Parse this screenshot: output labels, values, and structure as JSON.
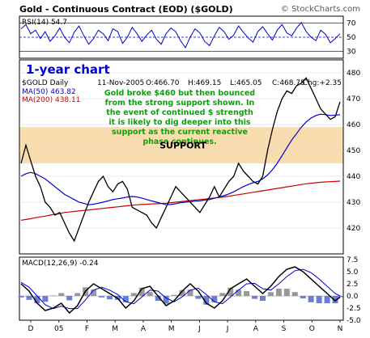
{
  "header": {
    "title": "Gold - Continuous Contract (EOD) ($GOLD)",
    "brand": "© StockCharts.com"
  },
  "chart_data": [
    {
      "type": "line",
      "panel": "rsi",
      "label": "RSI(14) 54.7",
      "ylim": [
        20,
        80
      ],
      "ticks": [
        30,
        50,
        70
      ],
      "reference_lines": [
        30,
        50,
        70
      ],
      "line_color": "#0000cc",
      "x": [
        0,
        6,
        12,
        18,
        24,
        30,
        36,
        42,
        48,
        54,
        60,
        66,
        72,
        78,
        84,
        90,
        96,
        102,
        108,
        114,
        120,
        126,
        132,
        138,
        144,
        150,
        156,
        162,
        168,
        174,
        180,
        186,
        192,
        198,
        204,
        210,
        216,
        222,
        228,
        234,
        240,
        246,
        252,
        258,
        264,
        270,
        276,
        282,
        288,
        294,
        300,
        306,
        312,
        318,
        324,
        330,
        336,
        342,
        348,
        354,
        360,
        366,
        372,
        378,
        384,
        390,
        396
      ],
      "values": [
        62,
        68,
        55,
        60,
        48,
        58,
        44,
        52,
        63,
        50,
        42,
        57,
        66,
        52,
        40,
        48,
        60,
        55,
        45,
        62,
        58,
        41,
        50,
        64,
        55,
        44,
        53,
        60,
        47,
        40,
        55,
        63,
        58,
        45,
        35,
        50,
        62,
        56,
        44,
        38,
        52,
        64,
        58,
        47,
        53,
        66,
        57,
        49,
        43,
        58,
        65,
        55,
        46,
        60,
        68,
        56,
        52,
        63,
        71,
        58,
        50,
        45,
        60,
        54,
        42,
        48,
        55
      ]
    },
    {
      "type": "line",
      "panel": "price",
      "title": "1-year chart",
      "info": {
        "symbol": "$GOLD Daily",
        "date": "11-Nov-2005",
        "open": "O:466.70",
        "high": "H:469.15",
        "low": "L:465.05",
        "close": "C:468.75",
        "change": "Chg:+2.35"
      },
      "legend": [
        {
          "name": "MA(50) 463.82",
          "color": "#0000cc"
        },
        {
          "name": "MA(200) 438.11",
          "color": "#cc0000"
        }
      ],
      "ylim": [
        410,
        485
      ],
      "ticks": [
        420,
        430,
        440,
        450,
        460,
        470,
        480
      ],
      "x_labels": [
        "D",
        "05",
        "F",
        "M",
        "A",
        "M",
        "J",
        "J",
        "A",
        "S",
        "O",
        "N"
      ],
      "support_zone": [
        445,
        459
      ],
      "support_label": "SUPPORT",
      "annotation": [
        "Gold broke $460 but then bounced",
        "from the strong support shown. In",
        "the event of continued $ strength",
        "it is likely to dig deeper into this",
        "support as the current reactive",
        "phase continues."
      ],
      "price_x": [
        0,
        6,
        12,
        18,
        24,
        30,
        36,
        42,
        48,
        54,
        60,
        66,
        72,
        78,
        84,
        90,
        96,
        102,
        108,
        114,
        120,
        126,
        132,
        138,
        144,
        150,
        156,
        162,
        168,
        174,
        180,
        186,
        192,
        198,
        204,
        210,
        216,
        222,
        228,
        234,
        240,
        246,
        252,
        258,
        264,
        270,
        276,
        282,
        288,
        294,
        300,
        306,
        312,
        318,
        324,
        330,
        336,
        342,
        348,
        354,
        360,
        366,
        372,
        378,
        384,
        390,
        396
      ],
      "price": [
        445,
        452,
        446,
        440,
        436,
        430,
        428,
        425,
        426,
        422,
        418,
        415,
        420,
        425,
        430,
        434,
        438,
        440,
        436,
        434,
        437,
        438,
        435,
        428,
        427,
        426,
        425,
        422,
        420,
        424,
        428,
        432,
        436,
        434,
        432,
        430,
        428,
        426,
        429,
        432,
        436,
        432,
        435,
        438,
        440,
        445,
        442,
        440,
        438,
        437,
        440,
        450,
        458,
        465,
        470,
        473,
        472,
        475,
        476,
        478,
        474,
        470,
        466,
        464,
        462,
        463,
        468.75
      ],
      "ma50": [
        440,
        441,
        441.5,
        441,
        440,
        439,
        437.5,
        436,
        434.5,
        433,
        432,
        431,
        430,
        429.5,
        429,
        429.2,
        429.6,
        430,
        430.5,
        431,
        431.3,
        431.6,
        432,
        432.2,
        432,
        431.6,
        431,
        430.5,
        430,
        429.5,
        429,
        429.1,
        429.4,
        429.8,
        430,
        430.2,
        430.4,
        430.5,
        430.8,
        431,
        431.5,
        432,
        432.5,
        433.2,
        434,
        435,
        436,
        436.8,
        437.5,
        438,
        439,
        440.5,
        442.5,
        445,
        448,
        451,
        454,
        456.5,
        459,
        461,
        462.5,
        463.5,
        464,
        463.8,
        463.5,
        463.6,
        463.82
      ],
      "ma200": [
        423,
        423.3,
        423.6,
        424,
        424.3,
        424.6,
        425,
        425.3,
        425.6,
        426,
        426.2,
        426.4,
        426.6,
        426.8,
        427,
        427.2,
        427.4,
        427.6,
        427.8,
        428,
        428.2,
        428.4,
        428.6,
        428.8,
        429,
        429.1,
        429.2,
        429.3,
        429.4,
        429.5,
        429.6,
        429.8,
        430,
        430.2,
        430.4,
        430.6,
        430.8,
        431,
        431.2,
        431.4,
        431.6,
        431.8,
        432,
        432.3,
        432.6,
        432.9,
        433.2,
        433.5,
        433.8,
        434.1,
        434.4,
        434.7,
        435,
        435.3,
        435.6,
        435.9,
        436.2,
        436.5,
        436.8,
        437.1,
        437.3,
        437.5,
        437.7,
        437.8,
        437.9,
        438,
        438.11
      ],
      "colors": {
        "price": "#000000",
        "ma50": "#0000cc",
        "ma200": "#cc0000",
        "annotation": "#00aa00",
        "support": "#f8d7a0"
      }
    },
    {
      "type": "line",
      "panel": "macd",
      "label": "MACD(12,26,9) -0.24",
      "ylim": [
        -5,
        8
      ],
      "ticks": [
        7.5,
        5.0,
        2.5,
        0.0,
        -2.5,
        -5.0
      ],
      "tick_labels": [
        "7.5",
        "5.0",
        "2.5",
        "0.0",
        "-2.5",
        "-5.0"
      ],
      "x": [
        0,
        10,
        20,
        30,
        40,
        50,
        60,
        70,
        80,
        90,
        100,
        110,
        120,
        130,
        140,
        150,
        160,
        170,
        180,
        190,
        200,
        210,
        220,
        230,
        240,
        250,
        260,
        270,
        280,
        290,
        300,
        310,
        320,
        330,
        340,
        350,
        360,
        370,
        380,
        390,
        396
      ],
      "macd": [
        2.5,
        1.0,
        -1.5,
        -3.0,
        -2.5,
        -1.5,
        -3.5,
        -2.0,
        1.0,
        2.5,
        1.5,
        0.5,
        -0.5,
        -2.5,
        -1.0,
        1.5,
        2.0,
        0.0,
        -2.0,
        -1.0,
        1.0,
        2.5,
        1.0,
        -1.5,
        -2.5,
        -1.0,
        1.5,
        2.5,
        3.5,
        2.0,
        0.5,
        2.0,
        4.0,
        5.5,
        6.0,
        5.0,
        3.5,
        2.0,
        0.5,
        -1.0,
        -0.24
      ],
      "signal": [
        2.8,
        1.8,
        0.0,
        -1.8,
        -2.6,
        -2.1,
        -2.6,
        -2.6,
        -0.8,
        1.2,
        1.8,
        1.2,
        0.3,
        -1.2,
        -1.6,
        -0.2,
        1.2,
        1.0,
        -0.4,
        -1.2,
        -0.2,
        1.2,
        1.6,
        0.3,
        -1.2,
        -1.6,
        -0.2,
        1.2,
        2.5,
        2.6,
        1.5,
        1.2,
        2.5,
        4.0,
        5.2,
        5.5,
        4.8,
        3.5,
        2.0,
        0.5,
        0.0
      ],
      "colors": {
        "macd": "#000000",
        "signal": "#0000cc",
        "hist_pos": "#999999",
        "hist_neg": "#6a7fd4"
      }
    }
  ]
}
